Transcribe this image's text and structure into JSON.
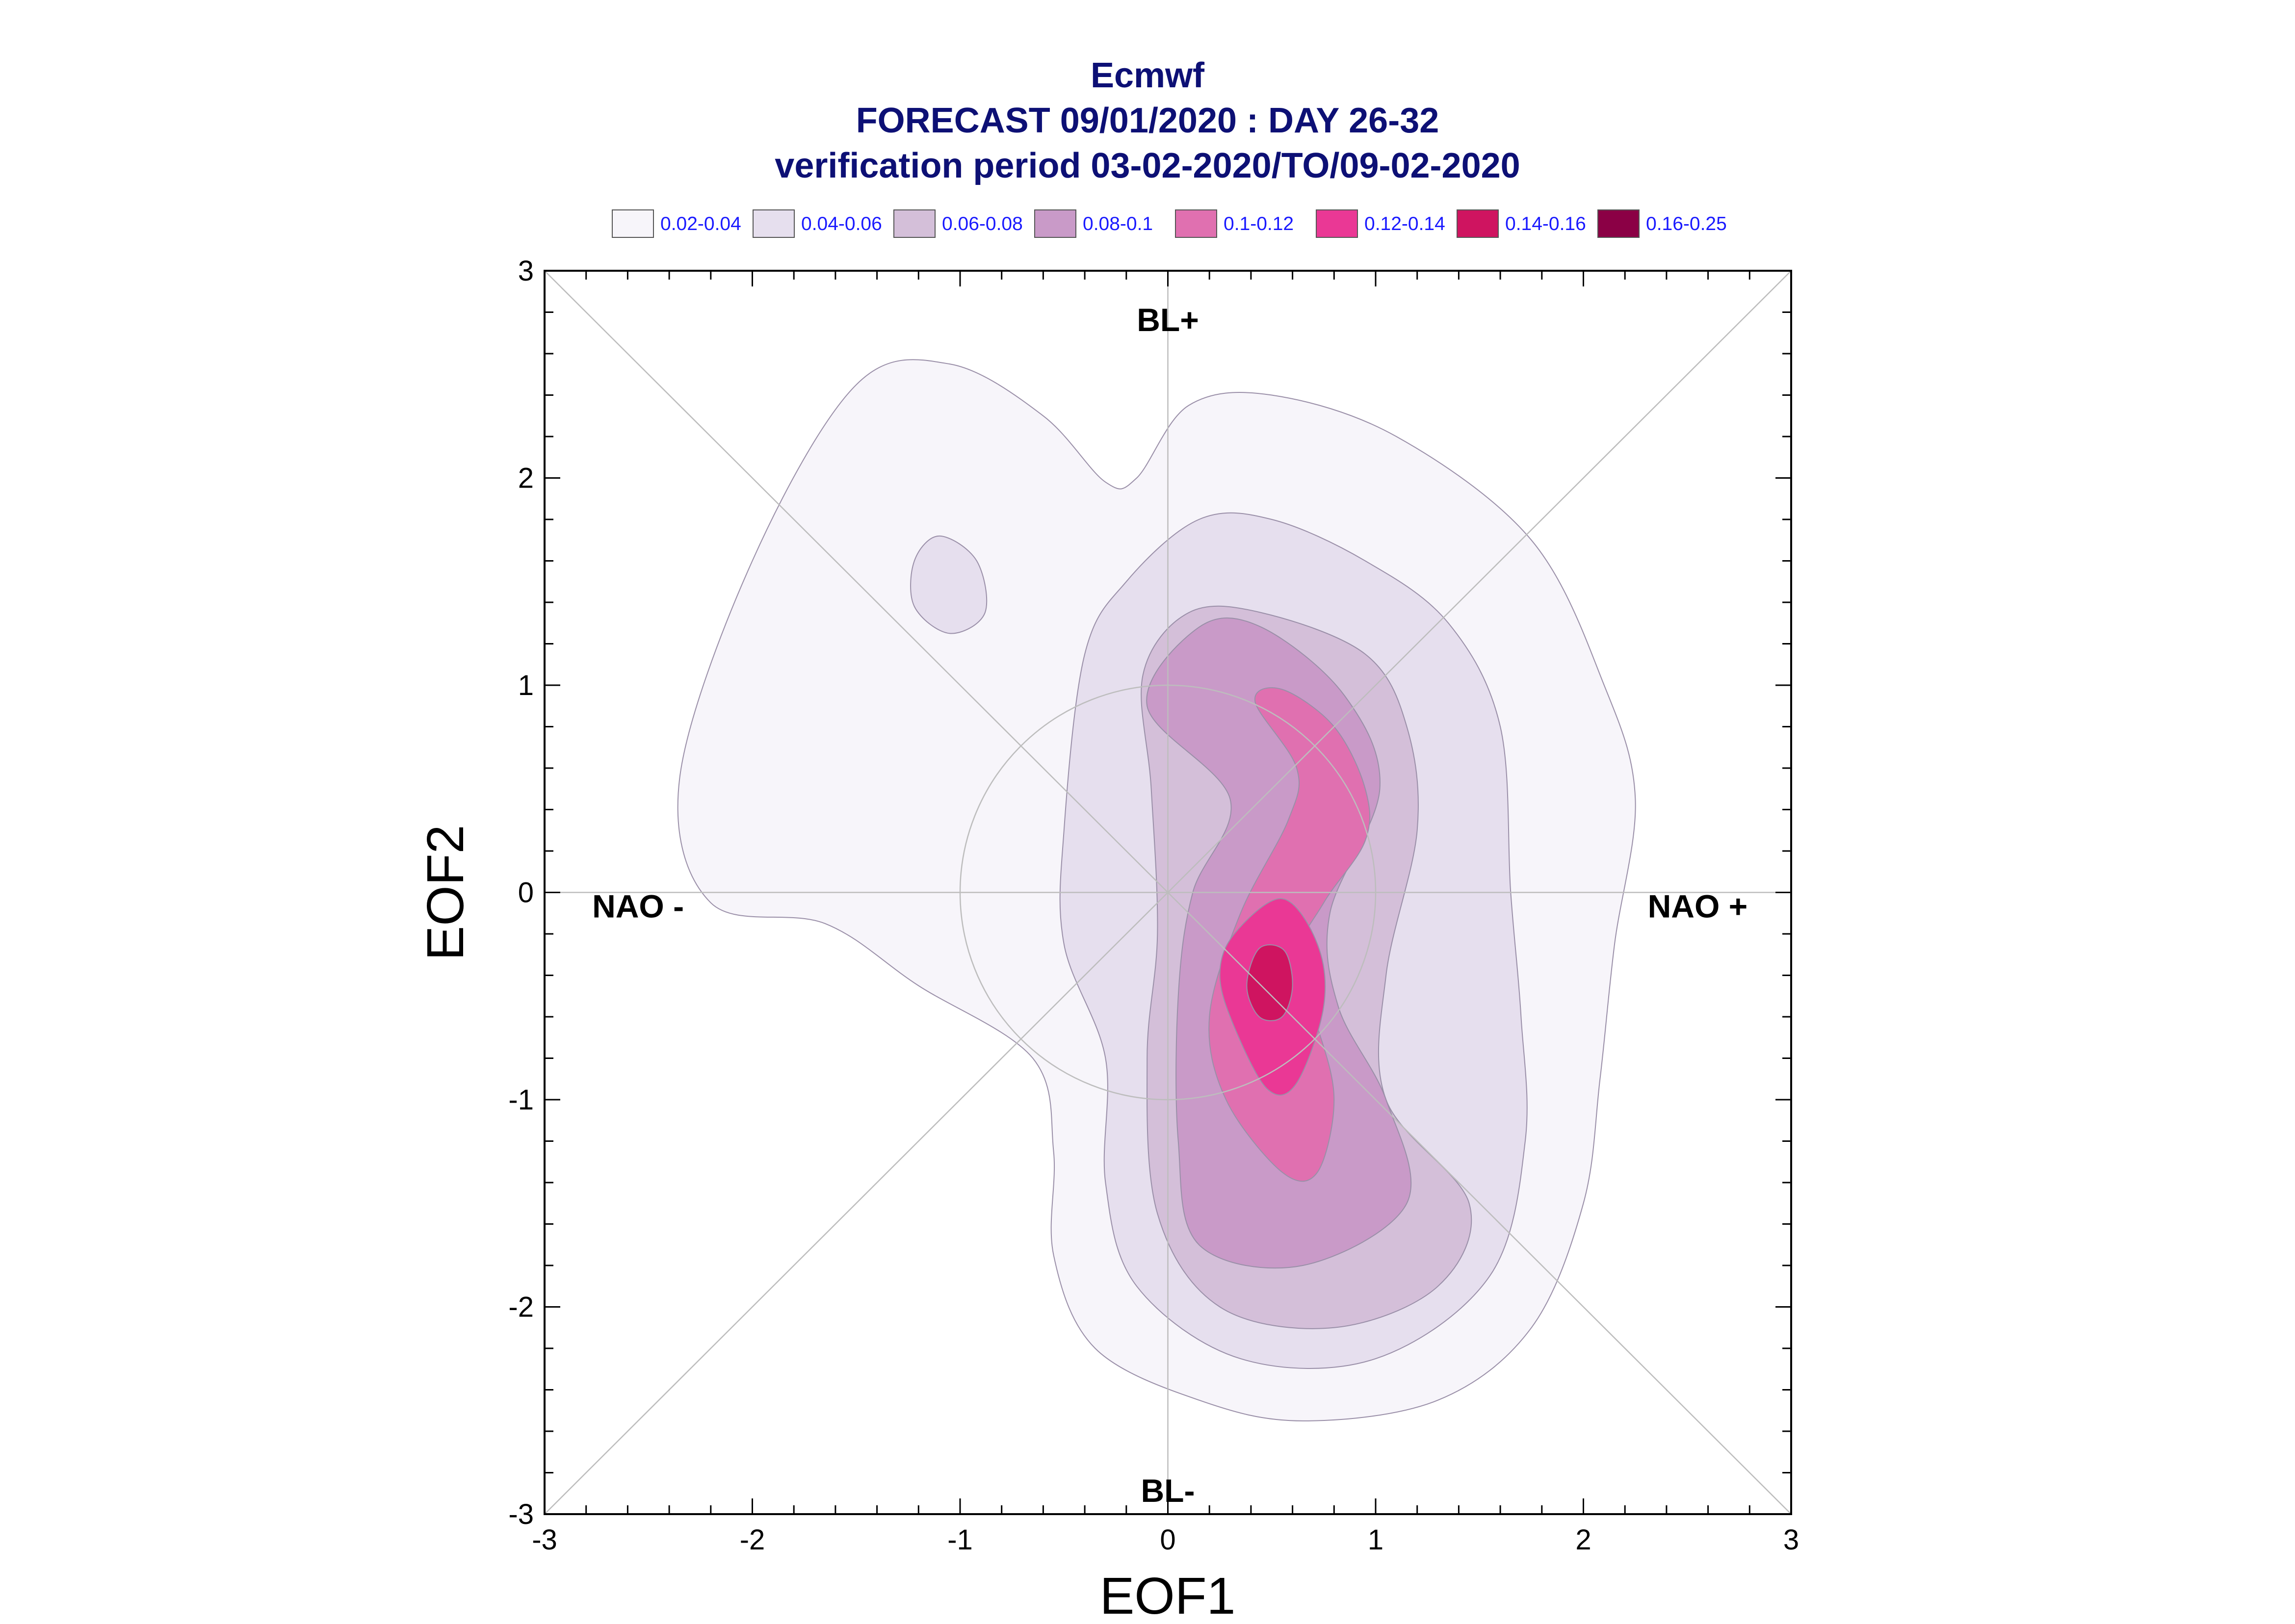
{
  "chart_data": {
    "type": "filled-contour",
    "title": [
      "Ecmwf",
      "FORECAST 09/01/2020 : DAY 26-32",
      "verification period 03-02-2020/TO/09-02-2020"
    ],
    "xlabel": "EOF1",
    "ylabel": "EOF2",
    "xlim": [
      -3,
      3
    ],
    "ylim": [
      -3,
      3
    ],
    "xticks": [
      "-3",
      "-2",
      "-1",
      "0",
      "1",
      "2",
      "3"
    ],
    "yticks": [
      "-3",
      "-2",
      "-1",
      "0",
      "1",
      "2",
      "3"
    ],
    "legend_position": "top",
    "legend": [
      {
        "label": "0.02-0.04",
        "color": "#f7f5fa"
      },
      {
        "label": "0.04-0.06",
        "color": "#e6dfee"
      },
      {
        "label": "0.06-0.08",
        "color": "#d4bfd9"
      },
      {
        "label": "0.08-0.1",
        "color": "#c99ac8"
      },
      {
        "label": "0.1-0.12",
        "color": "#e070b0"
      },
      {
        "label": "0.12-0.14",
        "color": "#ea3895"
      },
      {
        "label": "0.14-0.16",
        "color": "#cf1460"
      },
      {
        "label": "0.16-0.25",
        "color": "#8b0045"
      }
    ],
    "regime_labels": [
      {
        "label": "BL+",
        "x": 0,
        "y": 2.75
      },
      {
        "label": "BL-",
        "x": 0,
        "y": -2.9
      },
      {
        "label": "NAO -",
        "x": -2.55,
        "y": -0.08
      },
      {
        "label": "NAO +",
        "x": 2.55,
        "y": -0.08
      }
    ],
    "reference_circle": {
      "center": [
        0,
        0
      ],
      "radius": 1
    },
    "contours": [
      {
        "level": "0.02-0.04",
        "color": "#f7f5fa",
        "points": [
          [
            -1.05,
            2.55
          ],
          [
            -0.6,
            2.3
          ],
          [
            -0.3,
            1.98
          ],
          [
            -0.15,
            2.0
          ],
          [
            0.1,
            2.35
          ],
          [
            0.5,
            2.4
          ],
          [
            1.1,
            2.2
          ],
          [
            1.75,
            1.7
          ],
          [
            2.1,
            1.0
          ],
          [
            2.25,
            0.45
          ],
          [
            2.15,
            -0.25
          ],
          [
            2.08,
            -0.9
          ],
          [
            2.0,
            -1.5
          ],
          [
            1.75,
            -2.1
          ],
          [
            1.3,
            -2.45
          ],
          [
            0.65,
            -2.55
          ],
          [
            0.15,
            -2.45
          ],
          [
            -0.35,
            -2.2
          ],
          [
            -0.55,
            -1.75
          ],
          [
            -0.55,
            -1.25
          ],
          [
            -0.65,
            -0.8
          ],
          [
            -1.2,
            -0.45
          ],
          [
            -1.65,
            -0.15
          ],
          [
            -2.2,
            -0.05
          ],
          [
            -2.35,
            0.55
          ],
          [
            -2.0,
            1.6
          ],
          [
            -1.5,
            2.45
          ]
        ]
      },
      {
        "level": "0.04-0.06",
        "color": "#e6dfee",
        "points": [
          [
            -0.4,
            1.15
          ],
          [
            -0.2,
            1.5
          ],
          [
            0.15,
            1.8
          ],
          [
            0.5,
            1.8
          ],
          [
            0.95,
            1.6
          ],
          [
            1.35,
            1.3
          ],
          [
            1.6,
            0.8
          ],
          [
            1.65,
            0.0
          ],
          [
            1.7,
            -0.6
          ],
          [
            1.72,
            -1.2
          ],
          [
            1.55,
            -1.85
          ],
          [
            1.0,
            -2.25
          ],
          [
            0.35,
            -2.25
          ],
          [
            -0.15,
            -1.9
          ],
          [
            -0.3,
            -1.4
          ],
          [
            -0.3,
            -0.8
          ],
          [
            -0.5,
            -0.25
          ],
          [
            -0.5,
            0.3
          ]
        ]
      },
      {
        "level": "0.04-0.06",
        "color": "#e6dfee",
        "points": [
          [
            -1.1,
            1.72
          ],
          [
            -0.92,
            1.6
          ],
          [
            -0.88,
            1.35
          ],
          [
            -1.05,
            1.25
          ],
          [
            -1.22,
            1.38
          ],
          [
            -1.22,
            1.6
          ]
        ]
      },
      {
        "level": "0.06-0.08",
        "color": "#d4bfd9",
        "points": [
          [
            -0.12,
            1.05
          ],
          [
            0.1,
            1.35
          ],
          [
            0.45,
            1.35
          ],
          [
            0.95,
            1.15
          ],
          [
            1.15,
            0.8
          ],
          [
            1.2,
            0.3
          ],
          [
            1.05,
            -0.4
          ],
          [
            1.05,
            -1.0
          ],
          [
            1.45,
            -1.5
          ],
          [
            1.3,
            -1.9
          ],
          [
            0.8,
            -2.1
          ],
          [
            0.25,
            -2.0
          ],
          [
            -0.05,
            -1.55
          ],
          [
            -0.1,
            -0.8
          ],
          [
            -0.05,
            -0.2
          ],
          [
            -0.08,
            0.5
          ]
        ]
      },
      {
        "level": "0.08-0.1",
        "color": "#c99ac8",
        "points": [
          [
            -0.1,
            0.9
          ],
          [
            0.15,
            1.28
          ],
          [
            0.45,
            1.28
          ],
          [
            0.85,
            0.95
          ],
          [
            1.02,
            0.5
          ],
          [
            0.78,
            -0.1
          ],
          [
            0.82,
            -0.55
          ],
          [
            1.05,
            -1.0
          ],
          [
            1.15,
            -1.5
          ],
          [
            0.65,
            -1.8
          ],
          [
            0.15,
            -1.7
          ],
          [
            0.05,
            -1.2
          ],
          [
            0.05,
            -0.5
          ],
          [
            0.12,
            0.0
          ],
          [
            0.3,
            0.45
          ]
        ]
      },
      {
        "level": "0.1-0.12",
        "color": "#e070b0",
        "points": [
          [
            0.42,
            0.92
          ],
          [
            0.55,
            0.98
          ],
          [
            0.8,
            0.8
          ],
          [
            0.95,
            0.5
          ],
          [
            0.95,
            0.25
          ],
          [
            0.75,
            -0.05
          ],
          [
            0.6,
            -0.35
          ],
          [
            0.72,
            -0.65
          ],
          [
            0.8,
            -1.0
          ],
          [
            0.72,
            -1.35
          ],
          [
            0.55,
            -1.35
          ],
          [
            0.28,
            -1.0
          ],
          [
            0.2,
            -0.6
          ],
          [
            0.35,
            -0.1
          ],
          [
            0.58,
            0.35
          ],
          [
            0.62,
            0.6
          ]
        ]
      },
      {
        "level": "0.12-0.14",
        "color": "#ea3895",
        "points": [
          [
            0.32,
            -0.2
          ],
          [
            0.55,
            -0.03
          ],
          [
            0.72,
            -0.25
          ],
          [
            0.75,
            -0.55
          ],
          [
            0.62,
            -0.92
          ],
          [
            0.48,
            -0.95
          ],
          [
            0.32,
            -0.65
          ],
          [
            0.25,
            -0.4
          ]
        ]
      },
      {
        "level": "0.14-0.16",
        "color": "#cf1460",
        "points": [
          [
            0.44,
            -0.27
          ],
          [
            0.56,
            -0.28
          ],
          [
            0.6,
            -0.45
          ],
          [
            0.55,
            -0.6
          ],
          [
            0.44,
            -0.6
          ],
          [
            0.38,
            -0.45
          ]
        ]
      }
    ]
  }
}
